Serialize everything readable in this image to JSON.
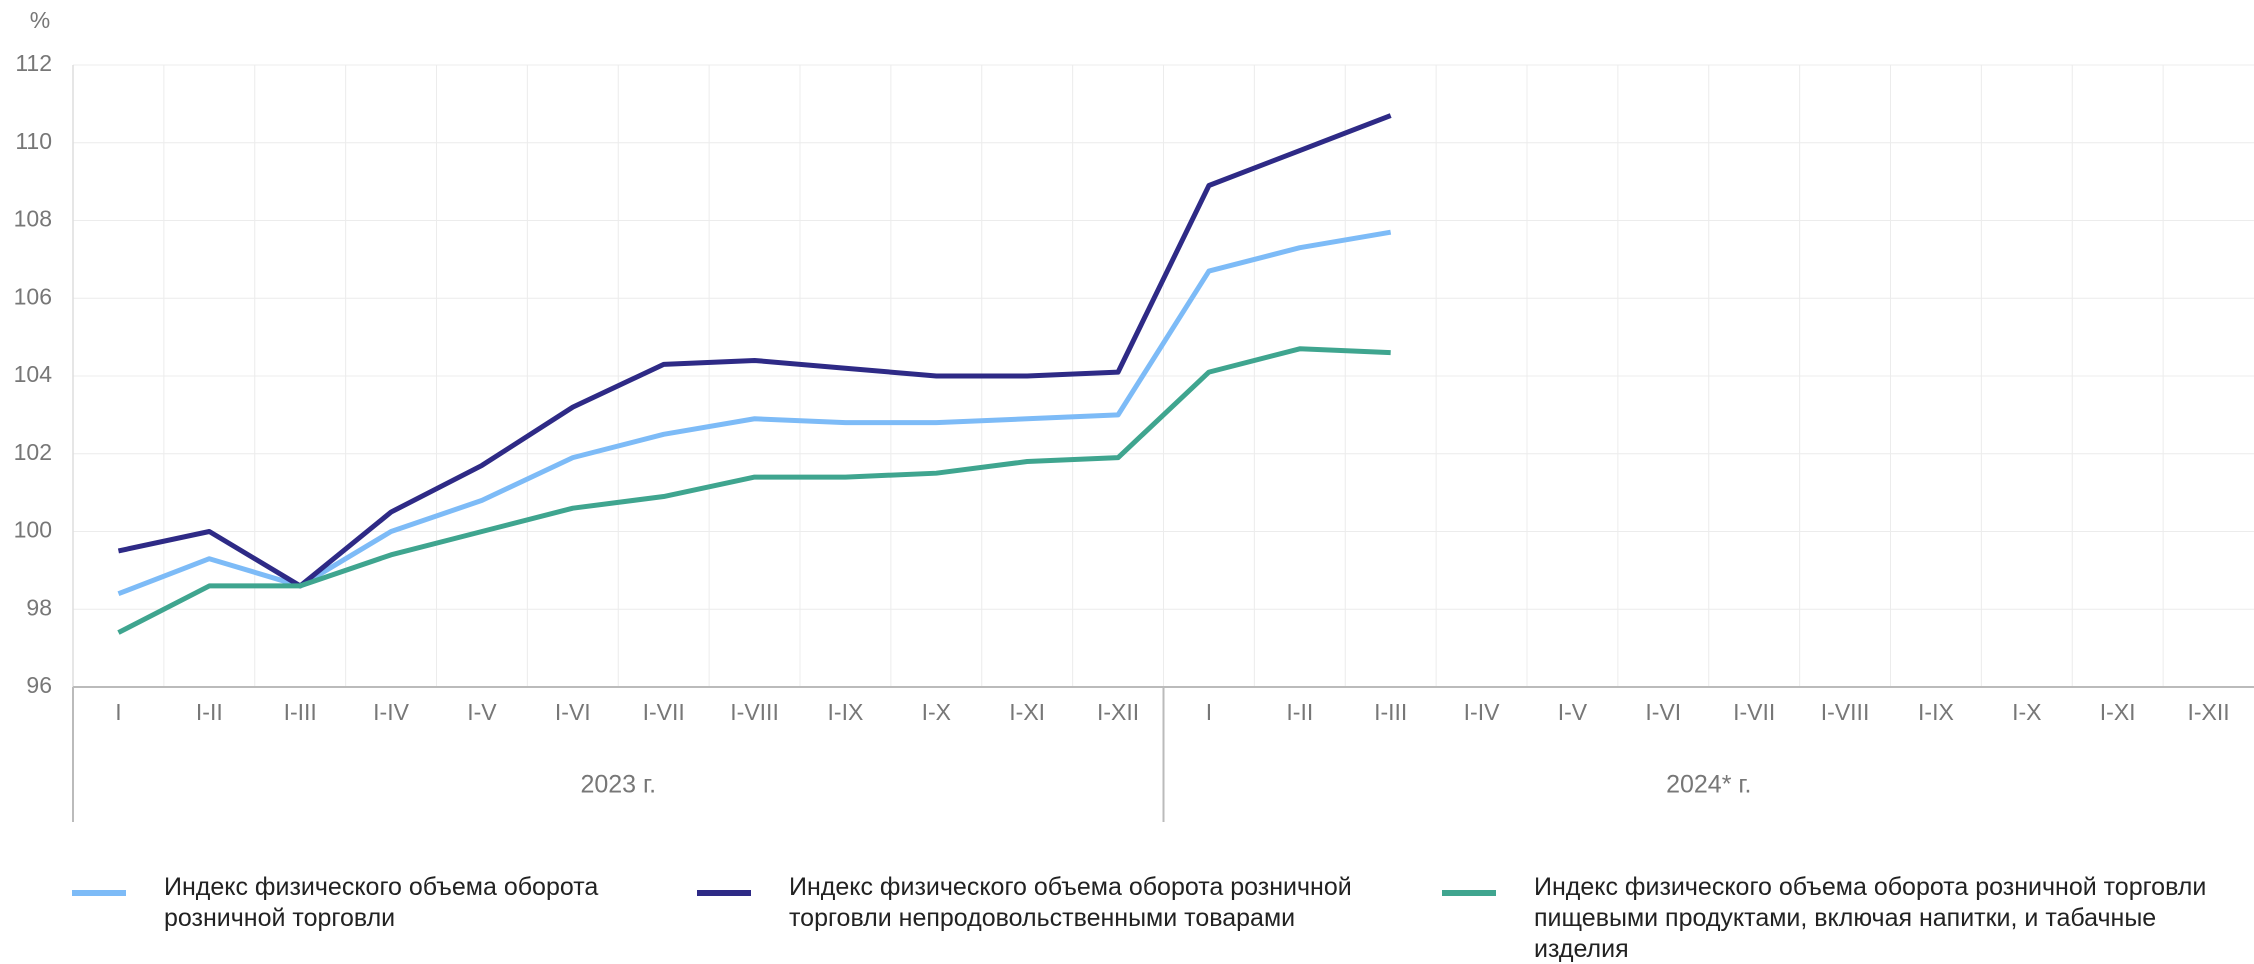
{
  "chart_data": {
    "type": "line",
    "y_label": "%",
    "groups": [
      {
        "label": "2023 г.",
        "categories": [
          "I",
          "I-II",
          "I-III",
          "I-IV",
          "I-V",
          "I-VI",
          "I-VII",
          "I-VIII",
          "I-IX",
          "I-X",
          "I-XI",
          "I-XII"
        ]
      },
      {
        "label": "2024* г.",
        "categories": [
          "I",
          "I-II",
          "I-III",
          "I-IV",
          "I-V",
          "I-VI",
          "I-VII",
          "I-VIII",
          "I-IX",
          "I-X",
          "I-XI",
          "I-XII"
        ]
      }
    ],
    "series": [
      {
        "name": "Индекс физического объема оборота розничной торговли",
        "color": "#7dbbf7",
        "values": [
          98.4,
          99.3,
          98.6,
          100.0,
          100.8,
          101.9,
          102.5,
          102.9,
          102.8,
          102.8,
          102.9,
          103.0,
          106.7,
          107.3,
          107.7,
          null,
          null,
          null,
          null,
          null,
          null,
          null,
          null,
          null
        ]
      },
      {
        "name": "Индекс физического объема оборота розничной торговли непродовольственными товарами",
        "color": "#2e2a86",
        "values": [
          99.5,
          100.0,
          98.6,
          100.5,
          101.7,
          103.2,
          104.3,
          104.4,
          104.2,
          104.0,
          104.0,
          104.1,
          108.9,
          109.8,
          110.7,
          null,
          null,
          null,
          null,
          null,
          null,
          null,
          null,
          null
        ]
      },
      {
        "name": "Индекс физического объема оборота розничной торговли пищевыми продуктами, включая напитки, и табачные изделия",
        "color": "#3fa58f",
        "values": [
          97.4,
          98.6,
          98.6,
          99.4,
          100.0,
          100.6,
          100.9,
          101.4,
          101.4,
          101.5,
          101.8,
          101.9,
          104.1,
          104.7,
          104.6,
          null,
          null,
          null,
          null,
          null,
          null,
          null,
          null,
          null
        ]
      }
    ],
    "ylim": [
      96,
      112
    ],
    "yticks": [
      96,
      98,
      100,
      102,
      104,
      106,
      108,
      110,
      112
    ],
    "grid": true,
    "legend": "bottom"
  }
}
